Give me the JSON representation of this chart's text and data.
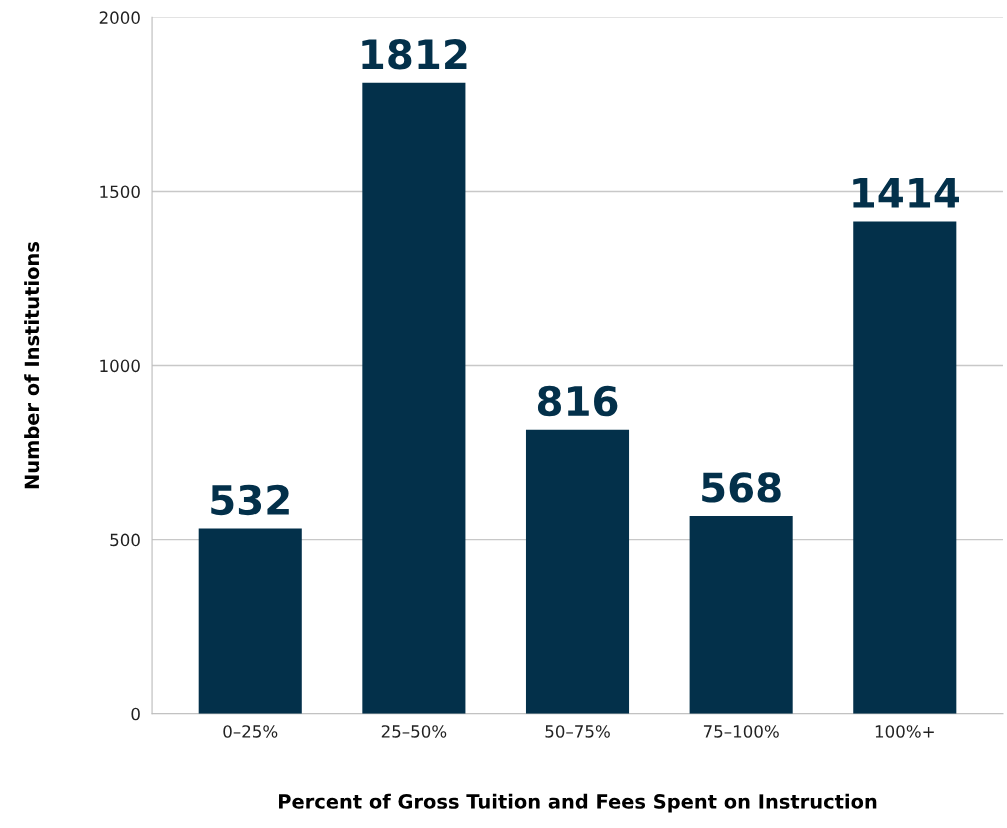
{
  "chart_data": {
    "type": "bar",
    "xlabel": "Percent of Gross Tuition and Fees Spent on Instruction",
    "ylabel": "Number of Institutions",
    "categories": [
      "0–25%",
      "25–50%",
      "50–75%",
      "75–100%",
      "100%+"
    ],
    "values": [
      532,
      1812,
      816,
      568,
      1414
    ],
    "color": "#03304a",
    "ylim": [
      0,
      2000
    ],
    "yticks": [
      0,
      500,
      1000,
      1500,
      2000
    ],
    "grid": "y",
    "data_labels": true,
    "legend": false
  }
}
